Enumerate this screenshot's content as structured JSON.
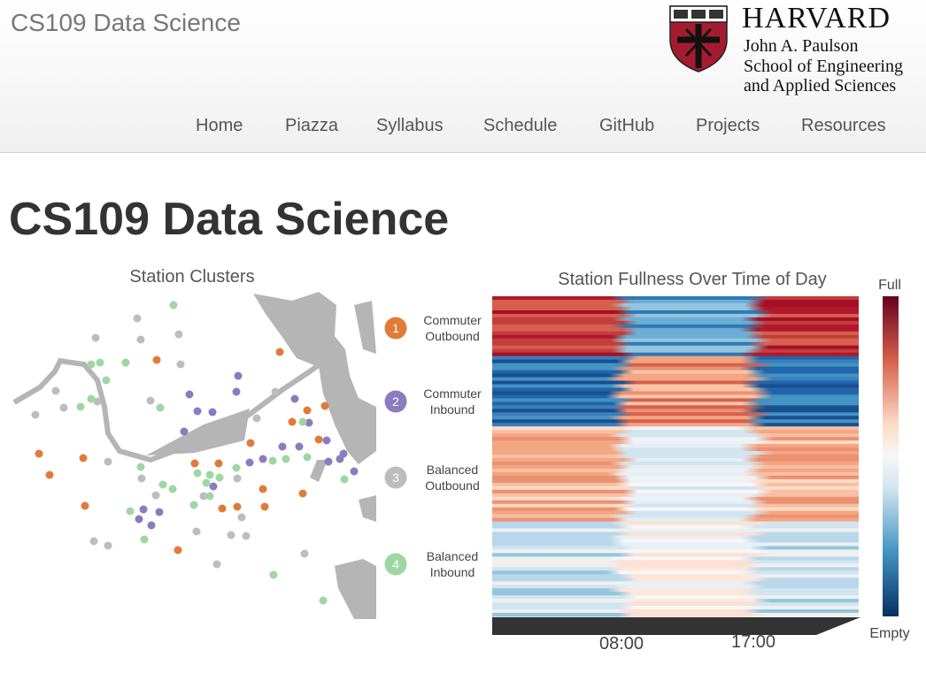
{
  "header": {
    "site_title": "CS109 Data Science",
    "logo": {
      "name": "HARVARD",
      "lines": [
        "John A. Paulson",
        "School of Engineering",
        "and Applied Sciences"
      ]
    },
    "nav": [
      "Home",
      "Piazza",
      "Syllabus",
      "Schedule",
      "GitHub",
      "Projects",
      "Resources"
    ]
  },
  "page_title": "CS109 Data Science",
  "figure": {
    "map_title": "Station Clusters",
    "clusters": [
      {
        "number": 1,
        "label": [
          "Commuter",
          "Outbound"
        ]
      },
      {
        "number": 2,
        "label": [
          "Commuter",
          "Inbound"
        ]
      },
      {
        "number": 3,
        "label": [
          "Balanced",
          "Outbound"
        ]
      },
      {
        "number": 4,
        "label": [
          "Balanced",
          "Inbound"
        ]
      }
    ],
    "heatmap_title": "Station Fullness Over Time of Day",
    "colorbar": {
      "top": "Full",
      "bottom": "Empty"
    },
    "time_ticks": [
      "08:00",
      "17:00"
    ]
  }
}
